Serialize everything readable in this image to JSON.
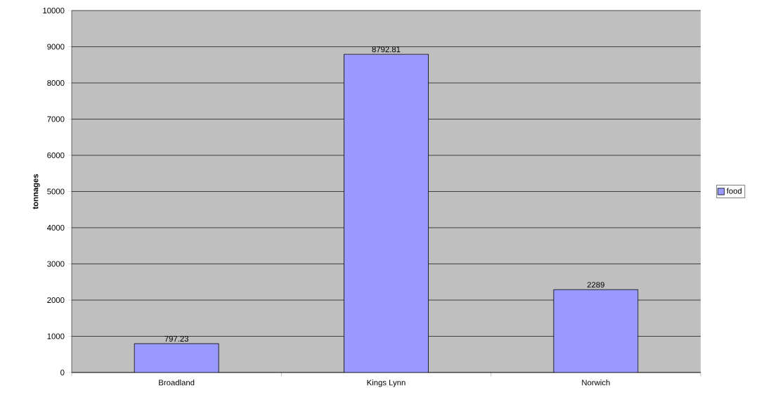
{
  "chart_data": {
    "type": "bar",
    "categories": [
      "Broadland",
      "Kings Lynn",
      "Norwich"
    ],
    "series": [
      {
        "name": "food",
        "color": "#9999ff",
        "values": [
          797.23,
          8792.81,
          2289
        ]
      }
    ],
    "ylabel": "tonnages",
    "ylim": [
      0,
      10000
    ],
    "yticks": [
      0,
      1000,
      2000,
      3000,
      4000,
      5000,
      6000,
      7000,
      8000,
      9000,
      10000
    ],
    "grid": "y",
    "legend": "right",
    "data_labels": true
  }
}
